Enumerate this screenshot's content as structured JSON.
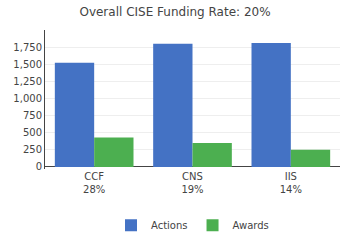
{
  "chart_data": {
    "type": "bar",
    "title": "Overall CISE Funding Rate: 20%",
    "categories": [
      "CCF\n28%",
      "CNS\n19%",
      "IIS\n14%"
    ],
    "series": [
      {
        "name": "Actions",
        "color": "#4472C4",
        "values": [
          1520,
          1800,
          1810
        ]
      },
      {
        "name": "Awards",
        "color": "#4CAF50",
        "values": [
          430,
          350,
          250
        ]
      }
    ],
    "ylim": [
      -30,
      2000
    ],
    "yticks": [
      0,
      250,
      500,
      750,
      {
        "value": 1000,
        "label": "1,000"
      },
      {
        "value": 1250,
        "label": "1,250"
      },
      {
        "value": 1500,
        "label": "1,500"
      },
      {
        "value": 1750,
        "label": "1,750"
      }
    ],
    "grid": true,
    "legend": "bottom"
  }
}
